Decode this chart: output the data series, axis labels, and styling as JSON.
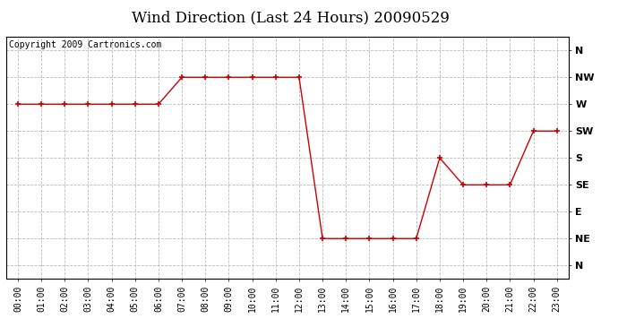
{
  "title": "Wind Direction (Last 24 Hours) 20090529",
  "copyright_text": "Copyright 2009 Cartronics.com",
  "x_labels": [
    "00:00",
    "01:00",
    "02:00",
    "03:00",
    "04:00",
    "05:00",
    "06:00",
    "07:00",
    "08:00",
    "09:00",
    "10:00",
    "11:00",
    "12:00",
    "13:00",
    "14:00",
    "15:00",
    "16:00",
    "17:00",
    "18:00",
    "19:00",
    "20:00",
    "21:00",
    "22:00",
    "23:00"
  ],
  "y_labels": [
    "N",
    "NE",
    "E",
    "SE",
    "S",
    "SW",
    "W",
    "NW",
    "N"
  ],
  "y_values": [
    0,
    45,
    90,
    135,
    180,
    225,
    270,
    315,
    360
  ],
  "data_hours": [
    0,
    1,
    2,
    3,
    4,
    5,
    6,
    7,
    8,
    9,
    10,
    11,
    12,
    13,
    14,
    15,
    16,
    17,
    18,
    19,
    20,
    21,
    22,
    23
  ],
  "data_direction": [
    270,
    270,
    270,
    270,
    270,
    270,
    270,
    315,
    315,
    315,
    315,
    315,
    315,
    45,
    45,
    45,
    45,
    45,
    180,
    135,
    135,
    135,
    225,
    225
  ],
  "line_color": "#cc0000",
  "marker": "+",
  "marker_size": 5,
  "bg_color": "#ffffff",
  "grid_color": "#bbbbbb",
  "title_fontsize": 12,
  "tick_fontsize": 7,
  "copyright_fontsize": 7
}
